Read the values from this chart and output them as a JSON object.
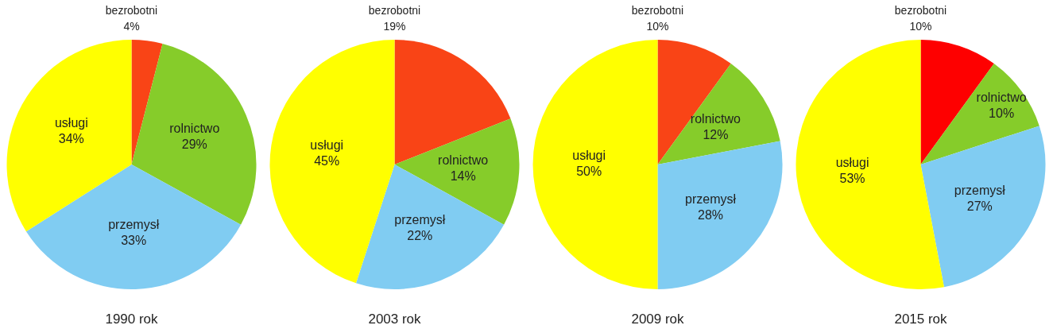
{
  "chart_data": [
    {
      "type": "pie",
      "title": "1990 rok",
      "categories": [
        "bezrobotni",
        "rolnictwo",
        "przemysł",
        "usługi"
      ],
      "values": [
        4,
        29,
        33,
        34
      ],
      "value_labels": [
        "4%",
        "29%",
        "33%",
        "34%"
      ],
      "colors": [
        "#f94416",
        "#86cc2a",
        "#80ccf2",
        "#ffff00"
      ],
      "legend": false
    },
    {
      "type": "pie",
      "title": "2003 rok",
      "categories": [
        "bezrobotni",
        "rolnictwo",
        "przemysł",
        "usługi"
      ],
      "values": [
        19,
        14,
        22,
        45
      ],
      "value_labels": [
        "19%",
        "14%",
        "22%",
        "45%"
      ],
      "colors": [
        "#f94416",
        "#86cc2a",
        "#80ccf2",
        "#ffff00"
      ],
      "legend": false
    },
    {
      "type": "pie",
      "title": "2009 rok",
      "categories": [
        "bezrobotni",
        "rolnictwo",
        "przemysł",
        "usługi"
      ],
      "values": [
        10,
        12,
        28,
        50
      ],
      "value_labels": [
        "10%",
        "12%",
        "28%",
        "50%"
      ],
      "colors": [
        "#f94416",
        "#86cc2a",
        "#80ccf2",
        "#ffff00"
      ],
      "legend": false
    },
    {
      "type": "pie",
      "title": "2015 rok",
      "categories": [
        "bezrobotni",
        "rolnictwo",
        "przemysł",
        "usługi"
      ],
      "values": [
        10,
        10,
        27,
        53
      ],
      "value_labels": [
        "10%",
        "10%",
        "27%",
        "53%"
      ],
      "colors": [
        "#fe0000",
        "#86cc2a",
        "#80ccf2",
        "#ffff00"
      ],
      "legend": false
    }
  ]
}
